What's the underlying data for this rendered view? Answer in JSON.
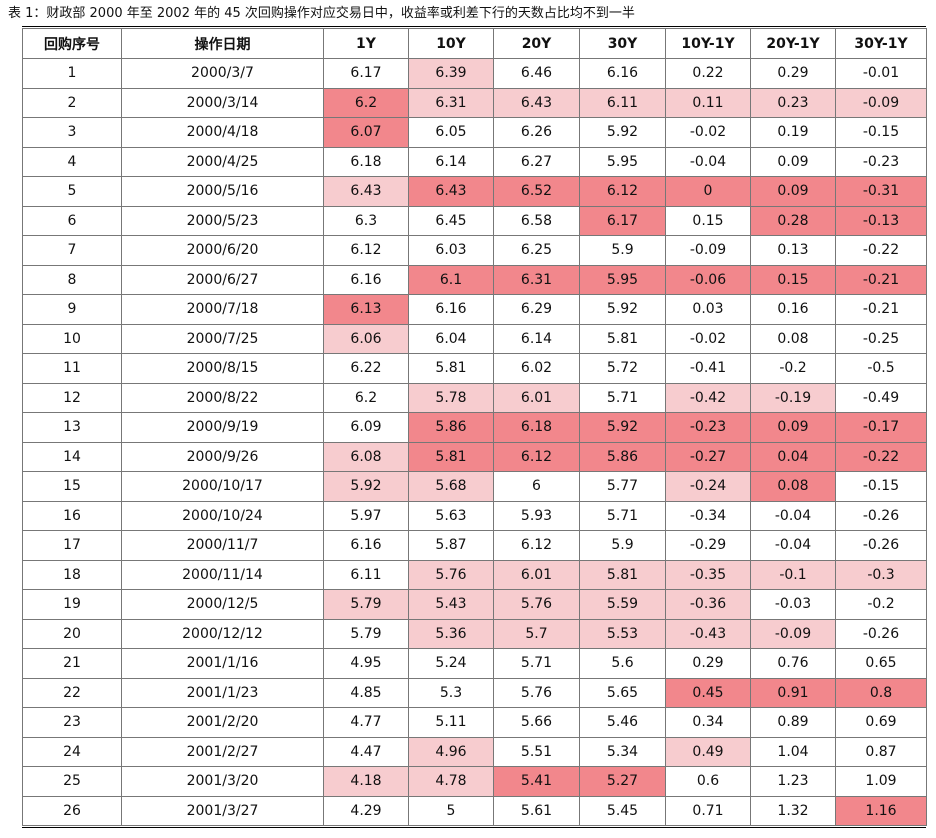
{
  "caption": "表 1：财政部 2000 年至 2002 年的 45 次回购操作对应交易日中，收益率或利差下行的天数占比均不到一半",
  "table": {
    "headers": [
      "回购序号",
      "操作日期",
      "1Y",
      "10Y",
      "20Y",
      "30Y",
      "10Y-1Y",
      "20Y-1Y",
      "30Y-1Y"
    ],
    "rows": [
      {
        "cells": [
          "1",
          "2000/3/7",
          "6.17",
          "6.39",
          "6.46",
          "6.16",
          "0.22",
          "0.29",
          "-0.01"
        ],
        "shade": [
          0,
          0,
          0,
          1,
          0,
          0,
          0,
          0,
          0
        ]
      },
      {
        "cells": [
          "2",
          "2000/3/14",
          "6.2",
          "6.31",
          "6.43",
          "6.11",
          "0.11",
          "0.23",
          "-0.09"
        ],
        "shade": [
          0,
          0,
          2,
          1,
          1,
          1,
          1,
          1,
          1
        ]
      },
      {
        "cells": [
          "3",
          "2000/4/18",
          "6.07",
          "6.05",
          "6.26",
          "5.92",
          "-0.02",
          "0.19",
          "-0.15"
        ],
        "shade": [
          0,
          0,
          2,
          0,
          0,
          0,
          0,
          0,
          0
        ]
      },
      {
        "cells": [
          "4",
          "2000/4/25",
          "6.18",
          "6.14",
          "6.27",
          "5.95",
          "-0.04",
          "0.09",
          "-0.23"
        ],
        "shade": [
          0,
          0,
          0,
          0,
          0,
          0,
          0,
          0,
          0
        ]
      },
      {
        "cells": [
          "5",
          "2000/5/16",
          "6.43",
          "6.43",
          "6.52",
          "6.12",
          "0",
          "0.09",
          "-0.31"
        ],
        "shade": [
          0,
          0,
          1,
          2,
          2,
          2,
          2,
          2,
          2
        ]
      },
      {
        "cells": [
          "6",
          "2000/5/23",
          "6.3",
          "6.45",
          "6.58",
          "6.17",
          "0.15",
          "0.28",
          "-0.13"
        ],
        "shade": [
          0,
          0,
          0,
          0,
          0,
          2,
          0,
          2,
          2
        ]
      },
      {
        "cells": [
          "7",
          "2000/6/20",
          "6.12",
          "6.03",
          "6.25",
          "5.9",
          "-0.09",
          "0.13",
          "-0.22"
        ],
        "shade": [
          0,
          0,
          0,
          0,
          0,
          0,
          0,
          0,
          0
        ]
      },
      {
        "cells": [
          "8",
          "2000/6/27",
          "6.16",
          "6.1",
          "6.31",
          "5.95",
          "-0.06",
          "0.15",
          "-0.21"
        ],
        "shade": [
          0,
          0,
          0,
          2,
          2,
          2,
          2,
          2,
          2
        ]
      },
      {
        "cells": [
          "9",
          "2000/7/18",
          "6.13",
          "6.16",
          "6.29",
          "5.92",
          "0.03",
          "0.16",
          "-0.21"
        ],
        "shade": [
          0,
          0,
          2,
          0,
          0,
          0,
          0,
          0,
          0
        ]
      },
      {
        "cells": [
          "10",
          "2000/7/25",
          "6.06",
          "6.04",
          "6.14",
          "5.81",
          "-0.02",
          "0.08",
          "-0.25"
        ],
        "shade": [
          0,
          0,
          1,
          0,
          0,
          0,
          0,
          0,
          0
        ]
      },
      {
        "cells": [
          "11",
          "2000/8/15",
          "6.22",
          "5.81",
          "6.02",
          "5.72",
          "-0.41",
          "-0.2",
          "-0.5"
        ],
        "shade": [
          0,
          0,
          0,
          0,
          0,
          0,
          0,
          0,
          0
        ]
      },
      {
        "cells": [
          "12",
          "2000/8/22",
          "6.2",
          "5.78",
          "6.01",
          "5.71",
          "-0.42",
          "-0.19",
          "-0.49"
        ],
        "shade": [
          0,
          0,
          0,
          1,
          1,
          0,
          1,
          1,
          0
        ]
      },
      {
        "cells": [
          "13",
          "2000/9/19",
          "6.09",
          "5.86",
          "6.18",
          "5.92",
          "-0.23",
          "0.09",
          "-0.17"
        ],
        "shade": [
          0,
          0,
          0,
          2,
          2,
          2,
          2,
          2,
          2
        ]
      },
      {
        "cells": [
          "14",
          "2000/9/26",
          "6.08",
          "5.81",
          "6.12",
          "5.86",
          "-0.27",
          "0.04",
          "-0.22"
        ],
        "shade": [
          0,
          0,
          1,
          2,
          2,
          2,
          2,
          2,
          2
        ]
      },
      {
        "cells": [
          "15",
          "2000/10/17",
          "5.92",
          "5.68",
          "6",
          "5.77",
          "-0.24",
          "0.08",
          "-0.15"
        ],
        "shade": [
          0,
          0,
          1,
          1,
          0,
          0,
          1,
          2,
          0
        ]
      },
      {
        "cells": [
          "16",
          "2000/10/24",
          "5.97",
          "5.63",
          "5.93",
          "5.71",
          "-0.34",
          "-0.04",
          "-0.26"
        ],
        "shade": [
          0,
          0,
          0,
          0,
          0,
          0,
          0,
          0,
          0
        ]
      },
      {
        "cells": [
          "17",
          "2000/11/7",
          "6.16",
          "5.87",
          "6.12",
          "5.9",
          "-0.29",
          "-0.04",
          "-0.26"
        ],
        "shade": [
          0,
          0,
          0,
          0,
          0,
          0,
          0,
          0,
          0
        ]
      },
      {
        "cells": [
          "18",
          "2000/11/14",
          "6.11",
          "5.76",
          "6.01",
          "5.81",
          "-0.35",
          "-0.1",
          "-0.3"
        ],
        "shade": [
          0,
          0,
          0,
          1,
          1,
          1,
          1,
          1,
          1
        ]
      },
      {
        "cells": [
          "19",
          "2000/12/5",
          "5.79",
          "5.43",
          "5.76",
          "5.59",
          "-0.36",
          "-0.03",
          "-0.2"
        ],
        "shade": [
          0,
          0,
          1,
          1,
          1,
          1,
          1,
          0,
          0
        ]
      },
      {
        "cells": [
          "20",
          "2000/12/12",
          "5.79",
          "5.36",
          "5.7",
          "5.53",
          "-0.43",
          "-0.09",
          "-0.26"
        ],
        "shade": [
          0,
          0,
          0,
          1,
          1,
          1,
          1,
          1,
          0
        ]
      },
      {
        "cells": [
          "21",
          "2001/1/16",
          "4.95",
          "5.24",
          "5.71",
          "5.6",
          "0.29",
          "0.76",
          "0.65"
        ],
        "shade": [
          0,
          0,
          0,
          0,
          0,
          0,
          0,
          0,
          0
        ]
      },
      {
        "cells": [
          "22",
          "2001/1/23",
          "4.85",
          "5.3",
          "5.76",
          "5.65",
          "0.45",
          "0.91",
          "0.8"
        ],
        "shade": [
          0,
          0,
          0,
          0,
          0,
          0,
          2,
          2,
          2
        ]
      },
      {
        "cells": [
          "23",
          "2001/2/20",
          "4.77",
          "5.11",
          "5.66",
          "5.46",
          "0.34",
          "0.89",
          "0.69"
        ],
        "shade": [
          0,
          0,
          0,
          0,
          0,
          0,
          0,
          0,
          0
        ]
      },
      {
        "cells": [
          "24",
          "2001/2/27",
          "4.47",
          "4.96",
          "5.51",
          "5.34",
          "0.49",
          "1.04",
          "0.87"
        ],
        "shade": [
          0,
          0,
          0,
          1,
          0,
          0,
          1,
          0,
          0
        ]
      },
      {
        "cells": [
          "25",
          "2001/3/20",
          "4.18",
          "4.78",
          "5.41",
          "5.27",
          "0.6",
          "1.23",
          "1.09"
        ],
        "shade": [
          0,
          0,
          1,
          1,
          2,
          2,
          0,
          0,
          0
        ]
      },
      {
        "cells": [
          "26",
          "2001/3/27",
          "4.29",
          "5",
          "5.61",
          "5.45",
          "0.71",
          "1.32",
          "1.16"
        ],
        "shade": [
          0,
          0,
          0,
          0,
          0,
          0,
          0,
          0,
          2
        ]
      }
    ]
  },
  "colors": {
    "light_highlight": "#f7cccf",
    "dark_highlight": "#f2878c"
  }
}
